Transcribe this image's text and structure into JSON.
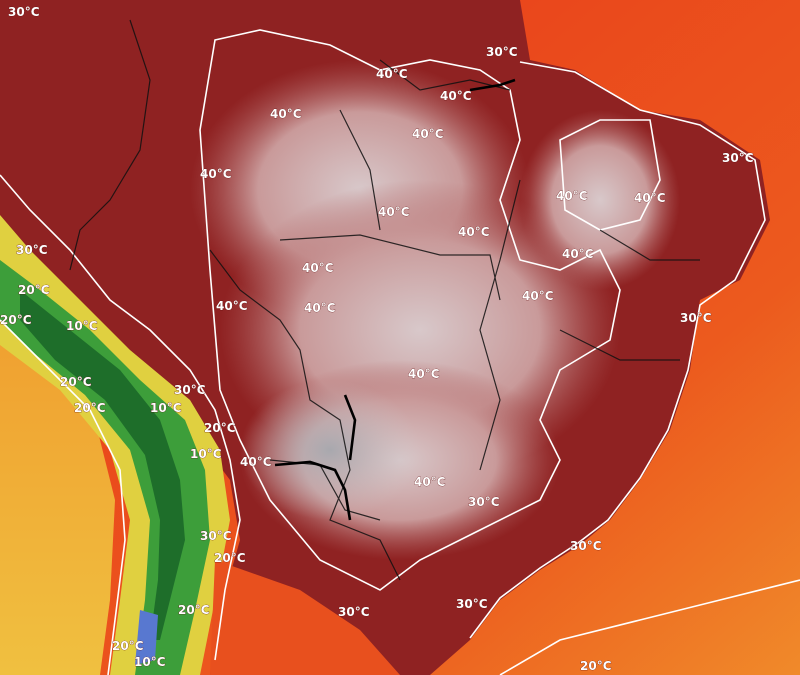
{
  "map": {
    "labels": [
      "30°C",
      "30°C",
      "40°C",
      "40°C",
      "40°C",
      "30°C",
      "40°C",
      "40°C",
      "40°C",
      "40°C",
      "40°C",
      "30°C",
      "40°C",
      "40°C",
      "40°C",
      "40°C",
      "30°C",
      "40°C",
      "40°C",
      "40°C",
      "20°C",
      "20°C",
      "10°C",
      "20°C",
      "30°C",
      "10°C",
      "20°C",
      "20°C",
      "10°C",
      "40°C",
      "30°C",
      "30°C",
      "40°C",
      "20°C",
      "20°C",
      "10°C",
      "20°C",
      "30°C",
      "30°C",
      "20°C",
      "30°C"
    ]
  },
  "colors": {
    "ocean_hot": "#e8421c",
    "ocean_warm": "#f07a22",
    "land_deep": "#8b1a1a",
    "land_mid": "#a83a3a",
    "land_light": "#c98888",
    "land_pale": "#e8d0d0",
    "land_gray": "#b8b8bc",
    "andes_green": "#3a9a3a",
    "andes_yellow": "#d8d838",
    "andes_blue": "#6a8ad8",
    "contour": "#ffffff",
    "border": "#111111"
  }
}
